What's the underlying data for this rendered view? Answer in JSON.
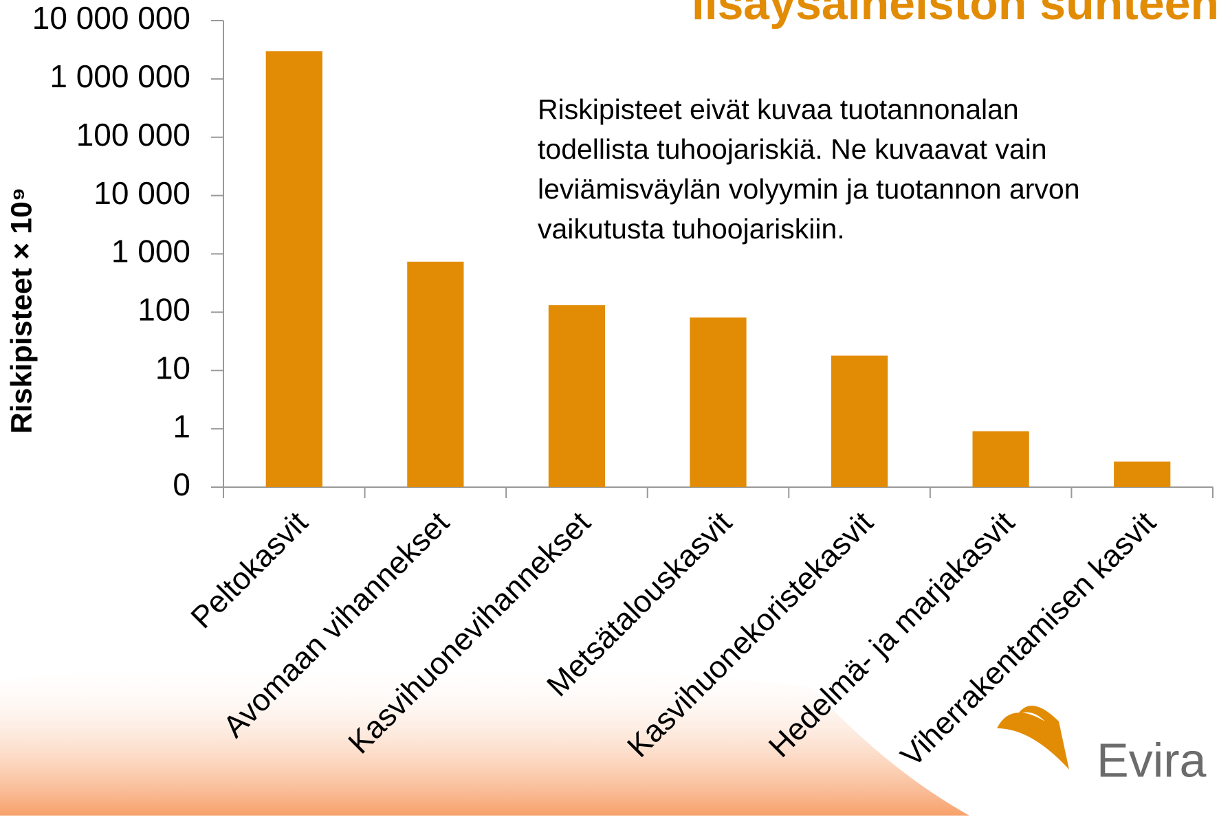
{
  "chart_data": {
    "type": "bar",
    "title": "lisäysaineiston suhteen",
    "annotation": [
      "Riskipisteet eivät kuvaa tuotannonalan",
      "todellista tuhoojariskiä. Ne kuvaavat vain",
      "leviämisväylän volyymin ja tuotannon arvon",
      "vaikutusta tuhoojariskiin."
    ],
    "y_label": "Riskipisteet  × 10⁹",
    "logo": "Evira",
    "categories": [
      "Peltokasvit",
      "Avomaan vihannekset",
      "Kasvihuonevihannekset",
      "Metsätalouskasvit",
      "Kasvihuonekoristekasvit",
      "Hedelmä- ja marjakasvit",
      "Viherrakentamisen kasvit"
    ],
    "values": [
      3000000,
      735,
      132,
      81,
      18,
      0.91,
      0.275
    ],
    "color": "#e28c05",
    "log_scale": true,
    "ylim": [
      0.1,
      10000000
    ],
    "yticks": [
      {
        "value": 0.1,
        "label": "0"
      },
      1,
      10,
      100,
      {
        "value": 1000,
        "label": "1 000"
      },
      {
        "value": 10000,
        "label": "10 000"
      },
      {
        "value": 100000,
        "label": "100 000"
      },
      {
        "value": 1000000,
        "label": "1 000 000"
      },
      {
        "value": 10000000,
        "label": "10 000 000"
      }
    ],
    "grid": false
  }
}
